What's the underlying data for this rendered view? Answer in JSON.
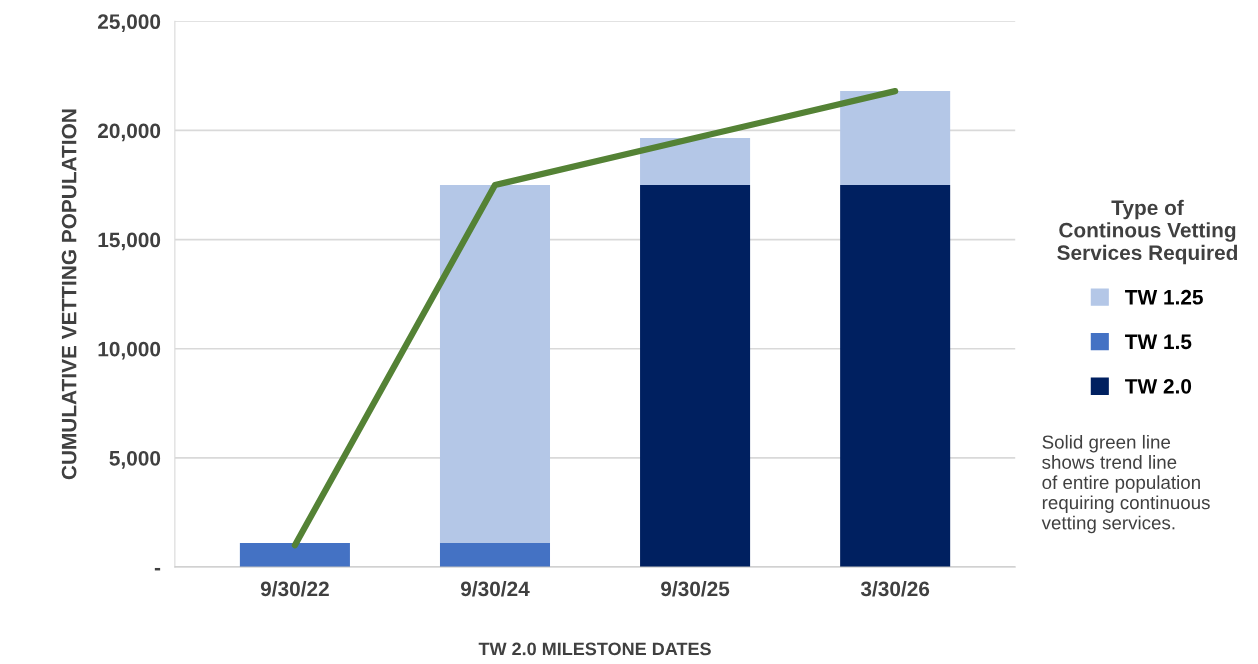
{
  "chart_data": {
    "type": "bar",
    "stacked": true,
    "xlabel": "TW 2.0 MILESTONE DATES",
    "ylabel": "CUMULATIVE VETTING POPULATION",
    "legend_title": "Type of\nContinous Vetting\nServices Required",
    "categories": [
      "9/30/22",
      "9/30/24",
      "9/30/25",
      "3/30/26"
    ],
    "series": [
      {
        "name": "TW 2.0",
        "color": "#002060",
        "values": [
          null,
          null,
          17500,
          17500
        ]
      },
      {
        "name": "TW 1.5",
        "color": "#4472c4",
        "values": [
          1100,
          1100,
          null,
          null
        ]
      },
      {
        "name": "TW 1.25",
        "color": "#b4c7e7",
        "values": [
          null,
          16400,
          2150,
          4300
        ]
      },
      {
        "type": "line",
        "color": "#548235",
        "values": [
          1000,
          17500,
          19650,
          21800
        ]
      }
    ],
    "ylim": [
      0,
      25000
    ],
    "yticks": [
      {
        "value": 0,
        "label": "-"
      },
      {
        "value": 5000,
        "label": "5,000"
      },
      {
        "value": 10000,
        "label": "10,000"
      },
      {
        "value": 15000,
        "label": "15,000"
      },
      {
        "value": 20000,
        "label": "20,000"
      },
      {
        "value": 25000,
        "label": "25,000"
      }
    ],
    "grid": "y",
    "legend": "right",
    "marker": "none",
    "annotations": [
      "Solid green line\nshows trend line\nof entire population\nrequiring continuous\nvetting services."
    ]
  }
}
